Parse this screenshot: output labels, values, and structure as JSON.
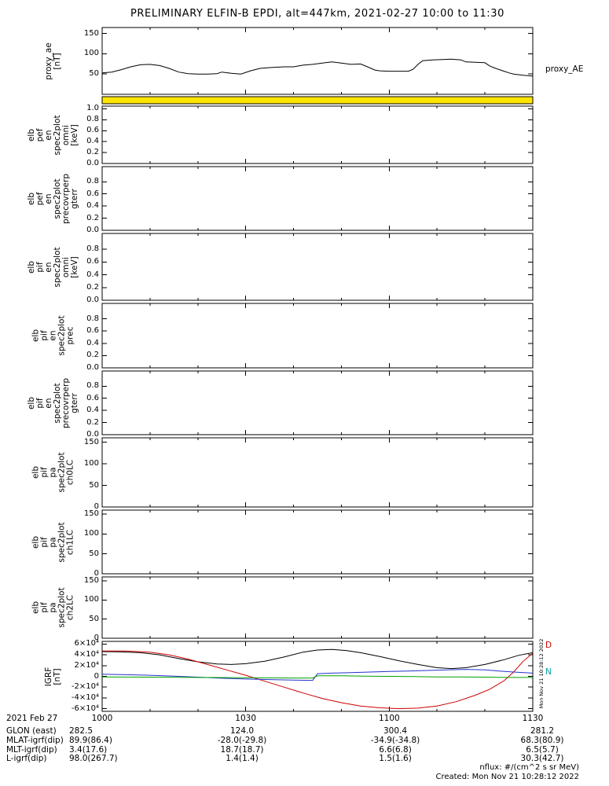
{
  "title": "PRELIMINARY ELFIN-B EPDI, alt=447km, 2021-02-27 10:00 to 11:30",
  "footer": {
    "units": "nflux: #/(cm^2 s sr MeV)",
    "created": "Created: Mon Nov 21 10:28:12 2022",
    "side_timestamp": "Mon Nov 21 10:28:12 2022"
  },
  "x_axis": {
    "tick_labels": [
      "1000",
      "1030",
      "1100",
      "1130"
    ],
    "tick_minutes": [
      0,
      30,
      60,
      90
    ],
    "minor_tick_minutes": 10,
    "date_label": "2021 Feb 27"
  },
  "bottom_rows": [
    {
      "label": "2021 Feb 27",
      "values": [
        "1000",
        "1030",
        "1100",
        "1130"
      ]
    },
    {
      "label": "GLON (east)",
      "values": [
        "282.5",
        "124.0",
        "300.4",
        "281.2"
      ]
    },
    {
      "label": "MLAT-igrf(dip)",
      "values": [
        "89.9(86.4)",
        "-28.0(-29.8)",
        "-34.9(-34.8)",
        "68.3(80.9)"
      ]
    },
    {
      "label": "MLT-igrf(dip)",
      "values": [
        "3.4(17.6)",
        "18.7(18.7)",
        "6.6(6.8)",
        "6.5(5.7)"
      ]
    },
    {
      "label": "L-igrf(dip)",
      "values": [
        "98.0(267.7)",
        "1.4(1.4)",
        "1.5(1.6)",
        "30.3(42.7)"
      ]
    }
  ],
  "chart_data": [
    {
      "type": "line",
      "name": "proxy_ae",
      "ylabel_lines": [
        "proxy_ae",
        "[nT]"
      ],
      "ylim": [
        0,
        165
      ],
      "yticks": [
        {
          "v": 150,
          "label": "150"
        },
        {
          "v": 100,
          "label": "100"
        },
        {
          "v": 50,
          "label": "50"
        }
      ],
      "right_labels": [
        {
          "text": "proxy_AE",
          "color": "#000000",
          "v": 62
        }
      ],
      "series": [
        {
          "name": "proxy_AE",
          "color": "#000000",
          "points": [
            [
              0,
              53
            ],
            [
              2,
              55
            ],
            [
              4,
              61
            ],
            [
              6,
              68
            ],
            [
              8,
              73
            ],
            [
              10,
              74
            ],
            [
              12,
              71
            ],
            [
              14,
              64
            ],
            [
              16,
              55
            ],
            [
              18,
              51
            ],
            [
              20,
              50
            ],
            [
              22,
              50
            ],
            [
              24,
              51
            ],
            [
              25,
              55
            ],
            [
              27,
              52
            ],
            [
              29,
              50
            ],
            [
              31,
              58
            ],
            [
              33,
              64
            ],
            [
              35,
              66
            ],
            [
              38,
              68
            ],
            [
              40,
              68
            ],
            [
              42,
              72
            ],
            [
              44,
              74
            ],
            [
              46,
              77
            ],
            [
              48,
              80
            ],
            [
              50,
              77
            ],
            [
              52,
              74
            ],
            [
              54,
              75
            ],
            [
              55,
              70
            ],
            [
              57,
              60
            ],
            [
              58,
              58
            ],
            [
              60,
              57
            ],
            [
              62,
              57
            ],
            [
              64,
              57
            ],
            [
              65,
              62
            ],
            [
              66,
              74
            ],
            [
              67,
              83
            ],
            [
              69,
              85
            ],
            [
              71,
              86
            ],
            [
              73,
              87
            ],
            [
              75,
              85
            ],
            [
              76,
              80
            ],
            [
              78,
              79
            ],
            [
              80,
              78
            ],
            [
              81,
              70
            ],
            [
              82,
              65
            ],
            [
              84,
              57
            ],
            [
              85,
              53
            ],
            [
              86,
              50
            ],
            [
              88,
              47
            ],
            [
              90,
              45
            ]
          ]
        }
      ]
    },
    {
      "type": "strip",
      "name": "status-strip",
      "fill": "#ffe400"
    },
    {
      "type": "line",
      "name": "elb_pef_en_spec2plot_omni",
      "ylabel_lines": [
        "elb",
        "pef",
        "en",
        "spec2plot",
        "omni",
        "[keV]"
      ],
      "ylim": [
        0,
        1.05
      ],
      "yticks": [
        {
          "v": 1,
          "label": "1.0"
        },
        {
          "v": 0.8,
          "label": "0.8"
        },
        {
          "v": 0.6,
          "label": "0.6"
        },
        {
          "v": 0.4,
          "label": "0.4"
        },
        {
          "v": 0.2,
          "label": "0.2"
        },
        {
          "v": 0,
          "label": "0.0"
        }
      ],
      "series": []
    },
    {
      "type": "line",
      "name": "elb_pef_en_spec2plot_precovrperp_gterr",
      "ylabel_lines": [
        "elb",
        "pef",
        "en",
        "spec2plot",
        "precovrperp",
        "gterr"
      ],
      "ylim": [
        0,
        1.05
      ],
      "yticks": [
        {
          "v": 0.8,
          "label": "0.8"
        },
        {
          "v": 0.6,
          "label": "0.6"
        },
        {
          "v": 0.4,
          "label": "0.4"
        },
        {
          "v": 0.2,
          "label": "0.2"
        },
        {
          "v": 0,
          "label": "0.0"
        }
      ],
      "series": []
    },
    {
      "type": "line",
      "name": "elb_pif_en_spec2plot_omni",
      "ylabel_lines": [
        "elb",
        "pif",
        "en",
        "spec2plot",
        "omni",
        "[keV]"
      ],
      "ylim": [
        0,
        1.05
      ],
      "yticks": [
        {
          "v": 0.8,
          "label": "0.8"
        },
        {
          "v": 0.6,
          "label": "0.6"
        },
        {
          "v": 0.4,
          "label": "0.4"
        },
        {
          "v": 0.2,
          "label": "0.2"
        },
        {
          "v": 0,
          "label": "0.0"
        }
      ],
      "series": []
    },
    {
      "type": "line",
      "name": "elb_pif_en_spec2plot_prec",
      "ylabel_lines": [
        "elb",
        "pif",
        "en",
        "spec2plot",
        "prec"
      ],
      "ylim": [
        0,
        1.05
      ],
      "yticks": [
        {
          "v": 0.8,
          "label": "0.8"
        },
        {
          "v": 0.6,
          "label": "0.6"
        },
        {
          "v": 0.4,
          "label": "0.4"
        },
        {
          "v": 0.2,
          "label": "0.2"
        },
        {
          "v": 0,
          "label": "0.0"
        }
      ],
      "series": []
    },
    {
      "type": "line",
      "name": "elb_pif_en_spec2plot_precovrperp_gterr",
      "ylabel_lines": [
        "elb",
        "pif",
        "en",
        "spec2plot",
        "precovrperp",
        "gterr"
      ],
      "ylim": [
        0,
        1.05
      ],
      "yticks": [
        {
          "v": 0.8,
          "label": "0.8"
        },
        {
          "v": 0.6,
          "label": "0.6"
        },
        {
          "v": 0.4,
          "label": "0.4"
        },
        {
          "v": 0.2,
          "label": "0.2"
        },
        {
          "v": 0,
          "label": "0.0"
        }
      ],
      "series": []
    },
    {
      "type": "line",
      "name": "elb_pif_pa_spec2plot_ch0LC",
      "ylabel_lines": [
        "elb",
        "pif",
        "pa",
        "spec2plot",
        "ch0LC"
      ],
      "ylim": [
        0,
        160
      ],
      "yticks": [
        {
          "v": 150,
          "label": "150"
        },
        {
          "v": 100,
          "label": "100"
        },
        {
          "v": 50,
          "label": "50"
        },
        {
          "v": 0,
          "label": "0"
        }
      ],
      "series": []
    },
    {
      "type": "line",
      "name": "elb_pif_pa_spec2plot_ch1LC",
      "ylabel_lines": [
        "elb",
        "pif",
        "pa",
        "spec2plot",
        "ch1LC"
      ],
      "ylim": [
        0,
        160
      ],
      "yticks": [
        {
          "v": 150,
          "label": "150"
        },
        {
          "v": 100,
          "label": "100"
        },
        {
          "v": 50,
          "label": "50"
        },
        {
          "v": 0,
          "label": "0"
        }
      ],
      "series": []
    },
    {
      "type": "line",
      "name": "elb_pif_pa_spec2plot_ch2LC",
      "ylabel_lines": [
        "elb",
        "pif",
        "pa",
        "spec2plot",
        "ch2LC"
      ],
      "ylim": [
        0,
        160
      ],
      "yticks": [
        {
          "v": 150,
          "label": "150"
        },
        {
          "v": 100,
          "label": "100"
        },
        {
          "v": 50,
          "label": "50"
        },
        {
          "v": 0,
          "label": "0"
        }
      ],
      "series": []
    },
    {
      "type": "line",
      "name": "igrf",
      "ylabel_lines": [
        "IGRF",
        "[nT]"
      ],
      "ylim": [
        -65000,
        65000
      ],
      "yticks": [
        {
          "v": 60000,
          "label": "6×10⁴"
        },
        {
          "v": 40000,
          "label": "4×10⁴"
        },
        {
          "v": 20000,
          "label": "2×10⁴"
        },
        {
          "v": 0,
          "label": "0"
        },
        {
          "v": -20000,
          "label": "-2×10⁴"
        },
        {
          "v": -40000,
          "label": "-4×10⁴"
        },
        {
          "v": -60000,
          "label": "-6×10⁴"
        }
      ],
      "right_labels": [
        {
          "text": "D",
          "color": "#cc0000",
          "v": 58000
        },
        {
          "text": "N",
          "color": "#009e9e",
          "v": 8000
        }
      ],
      "series": [
        {
          "name": "B",
          "color": "#000000",
          "points": [
            [
              0,
              46000
            ],
            [
              4,
              45500
            ],
            [
              8,
              44000
            ],
            [
              12,
              40000
            ],
            [
              16,
              33000
            ],
            [
              20,
              27000
            ],
            [
              24,
              23000
            ],
            [
              27,
              22000
            ],
            [
              30,
              23500
            ],
            [
              34,
              28000
            ],
            [
              38,
              36000
            ],
            [
              42,
              45000
            ],
            [
              45,
              49000
            ],
            [
              48,
              50000
            ],
            [
              51,
              48000
            ],
            [
              54,
              44000
            ],
            [
              58,
              37000
            ],
            [
              62,
              29000
            ],
            [
              66,
              22000
            ],
            [
              70,
              16000
            ],
            [
              73,
              14500
            ],
            [
              76,
              16000
            ],
            [
              80,
              22000
            ],
            [
              84,
              31000
            ],
            [
              87,
              39000
            ],
            [
              90,
              44000
            ]
          ]
        },
        {
          "name": "D",
          "color": "#cc0000",
          "points": [
            [
              0,
              47000
            ],
            [
              5,
              47000
            ],
            [
              10,
              45000
            ],
            [
              14,
              40000
            ],
            [
              18,
              32000
            ],
            [
              22,
              22000
            ],
            [
              26,
              12000
            ],
            [
              30,
              2000
            ],
            [
              34,
              -9000
            ],
            [
              38,
              -20000
            ],
            [
              42,
              -31000
            ],
            [
              46,
              -41000
            ],
            [
              50,
              -49000
            ],
            [
              54,
              -55000
            ],
            [
              58,
              -58500
            ],
            [
              62,
              -60000
            ],
            [
              66,
              -59000
            ],
            [
              70,
              -55000
            ],
            [
              74,
              -47000
            ],
            [
              78,
              -35000
            ],
            [
              81,
              -24000
            ],
            [
              84,
              -8000
            ],
            [
              86,
              8000
            ],
            [
              88,
              28000
            ],
            [
              90,
              43000
            ]
          ]
        },
        {
          "name": "N",
          "color": "#2233cc",
          "points": [
            [
              0,
              4000
            ],
            [
              5,
              3000
            ],
            [
              10,
              2000
            ],
            [
              15,
              500
            ],
            [
              20,
              -1500
            ],
            [
              25,
              -3500
            ],
            [
              30,
              -5000
            ],
            [
              35,
              -6000
            ],
            [
              40,
              -7000
            ],
            [
              44,
              -7500
            ],
            [
              45,
              5000
            ],
            [
              48,
              6000
            ],
            [
              52,
              7000
            ],
            [
              56,
              8000
            ],
            [
              60,
              9000
            ],
            [
              64,
              10000
            ],
            [
              68,
              11000
            ],
            [
              72,
              12000
            ],
            [
              76,
              13000
            ],
            [
              80,
              12000
            ],
            [
              83,
              10000
            ],
            [
              86,
              8000
            ],
            [
              90,
              6000
            ]
          ]
        },
        {
          "name": "E",
          "color": "#00a000",
          "points": [
            [
              0,
              -1000
            ],
            [
              10,
              -1500
            ],
            [
              20,
              -2000
            ],
            [
              30,
              -2500
            ],
            [
              40,
              -3000
            ],
            [
              44,
              -3000
            ],
            [
              45,
              1000
            ],
            [
              50,
              1000
            ],
            [
              55,
              500
            ],
            [
              60,
              0
            ],
            [
              65,
              -500
            ],
            [
              70,
              -1000
            ],
            [
              75,
              -1000
            ],
            [
              80,
              -1500
            ],
            [
              85,
              -2000
            ],
            [
              90,
              -2000
            ]
          ]
        }
      ]
    }
  ]
}
